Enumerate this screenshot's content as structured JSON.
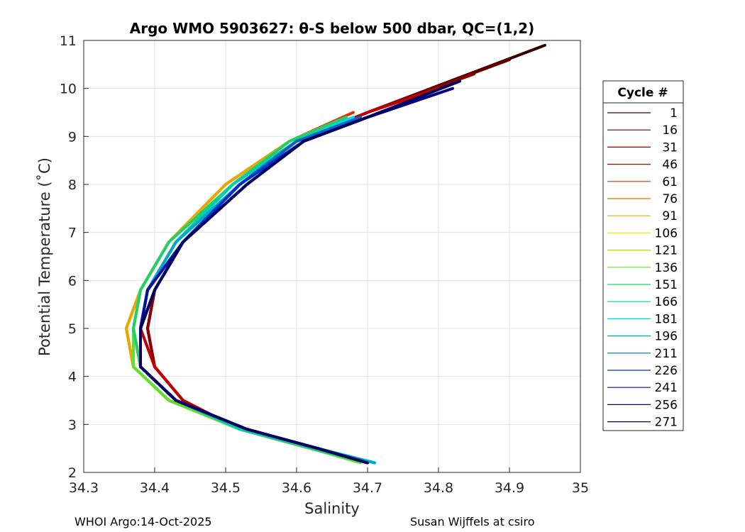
{
  "chart_data": {
    "type": "line",
    "title": "Argo WMO 5903627: θ-S below 500 dbar,  QC=(1,2)",
    "xlabel": "Salinity",
    "ylabel": "Potential Temperature (˚C)",
    "xlim": [
      34.3,
      35.0
    ],
    "ylim": [
      2,
      11
    ],
    "xticks": [
      "34.3",
      "34.4",
      "34.5",
      "34.6",
      "34.7",
      "34.8",
      "34.9",
      "35"
    ],
    "yticks": [
      "2",
      "3",
      "4",
      "5",
      "6",
      "7",
      "8",
      "9",
      "10",
      "11"
    ],
    "grid": true,
    "legend_title": "Cycle #",
    "legend_position": "right",
    "series": [
      {
        "name": "1",
        "color": "#3a0000",
        "x": [
          34.7,
          34.62,
          34.52,
          34.44,
          34.4,
          34.39,
          34.4,
          34.44,
          34.52,
          34.6,
          34.7,
          34.95
        ],
        "y": [
          2.2,
          2.5,
          2.9,
          3.5,
          4.2,
          5.0,
          5.8,
          6.8,
          8.0,
          8.9,
          9.5,
          10.9
        ]
      },
      {
        "name": "16",
        "color": "#620000",
        "x": [
          34.7,
          34.62,
          34.52,
          34.44,
          34.4,
          34.39,
          34.4,
          34.44,
          34.52,
          34.6,
          34.7,
          34.9
        ],
        "y": [
          2.2,
          2.5,
          2.9,
          3.5,
          4.2,
          5.0,
          5.8,
          6.8,
          8.0,
          8.9,
          9.5,
          10.6
        ]
      },
      {
        "name": "31",
        "color": "#8b0000",
        "x": [
          34.7,
          34.62,
          34.52,
          34.44,
          34.4,
          34.39,
          34.4,
          34.44,
          34.52,
          34.6,
          34.7,
          34.85
        ],
        "y": [
          2.2,
          2.5,
          2.9,
          3.5,
          4.2,
          5.0,
          5.8,
          6.8,
          8.0,
          8.9,
          9.5,
          10.3
        ]
      },
      {
        "name": "46",
        "color": "#c00000",
        "x": [
          34.7,
          34.62,
          34.52,
          34.44,
          34.4,
          34.38,
          34.39,
          34.43,
          34.51,
          34.6,
          34.7,
          34.8
        ],
        "y": [
          2.2,
          2.5,
          2.9,
          3.5,
          4.2,
          5.0,
          5.8,
          6.8,
          8.0,
          8.9,
          9.5,
          10.0
        ]
      },
      {
        "name": "61",
        "color": "#e03000",
        "x": [
          34.7,
          34.62,
          34.52,
          34.43,
          34.38,
          34.37,
          34.38,
          34.42,
          34.5,
          34.59,
          34.68
        ],
        "y": [
          2.2,
          2.5,
          2.9,
          3.5,
          4.2,
          5.0,
          5.8,
          6.8,
          8.0,
          8.9,
          9.5
        ]
      },
      {
        "name": "76",
        "color": "#ec6a00",
        "x": [
          34.7,
          34.62,
          34.52,
          34.42,
          34.37,
          34.36,
          34.38,
          34.42,
          34.5,
          34.59,
          34.68
        ],
        "y": [
          2.2,
          2.5,
          2.9,
          3.5,
          4.2,
          5.0,
          5.8,
          6.8,
          8.0,
          8.9,
          9.4
        ]
      },
      {
        "name": "91",
        "color": "#e8a800",
        "x": [
          34.7,
          34.62,
          34.52,
          34.42,
          34.37,
          34.36,
          34.38,
          34.42,
          34.5,
          34.59,
          34.67
        ],
        "y": [
          2.2,
          2.5,
          2.9,
          3.5,
          4.2,
          5.0,
          5.8,
          6.8,
          8.0,
          8.9,
          9.4
        ]
      },
      {
        "name": "106",
        "color": "#f0f000",
        "x": [
          34.7,
          34.62,
          34.52,
          34.42,
          34.37,
          34.37,
          34.38,
          34.42,
          34.51,
          34.59,
          34.67
        ],
        "y": [
          2.2,
          2.5,
          2.9,
          3.5,
          4.2,
          5.0,
          5.8,
          6.8,
          8.0,
          8.9,
          9.4
        ]
      },
      {
        "name": "121",
        "color": "#a8e000",
        "x": [
          34.7,
          34.62,
          34.52,
          34.42,
          34.37,
          34.37,
          34.38,
          34.42,
          34.51,
          34.59,
          34.67
        ],
        "y": [
          2.2,
          2.5,
          2.9,
          3.5,
          4.2,
          5.0,
          5.8,
          6.8,
          8.0,
          8.9,
          9.4
        ]
      },
      {
        "name": "136",
        "color": "#60e030",
        "x": [
          34.69,
          34.62,
          34.52,
          34.42,
          34.37,
          34.37,
          34.38,
          34.42,
          34.51,
          34.59,
          34.67
        ],
        "y": [
          2.2,
          2.5,
          2.9,
          3.5,
          4.2,
          5.0,
          5.8,
          6.8,
          8.0,
          8.9,
          9.4
        ]
      },
      {
        "name": "151",
        "color": "#20d070",
        "x": [
          34.7,
          34.62,
          34.52,
          34.43,
          34.38,
          34.37,
          34.38,
          34.42,
          34.51,
          34.59,
          34.67
        ],
        "y": [
          2.2,
          2.5,
          2.9,
          3.5,
          4.2,
          5.0,
          5.8,
          6.8,
          8.0,
          8.9,
          9.4
        ]
      },
      {
        "name": "166",
        "color": "#00d0b0",
        "x": [
          34.71,
          34.63,
          34.52,
          34.43,
          34.38,
          34.38,
          34.39,
          34.43,
          34.51,
          34.6,
          34.68
        ],
        "y": [
          2.2,
          2.5,
          2.9,
          3.5,
          4.2,
          5.0,
          5.8,
          6.8,
          8.0,
          8.9,
          9.4
        ]
      },
      {
        "name": "181",
        "color": "#00d8e8",
        "x": [
          34.71,
          34.63,
          34.53,
          34.43,
          34.38,
          34.38,
          34.39,
          34.43,
          34.52,
          34.6,
          34.68
        ],
        "y": [
          2.2,
          2.5,
          2.9,
          3.5,
          4.2,
          5.0,
          5.8,
          6.8,
          8.0,
          8.9,
          9.4
        ]
      },
      {
        "name": "196",
        "color": "#00a8c8",
        "x": [
          34.71,
          34.63,
          34.53,
          34.43,
          34.38,
          34.38,
          34.39,
          34.43,
          34.52,
          34.6,
          34.69
        ],
        "y": [
          2.2,
          2.5,
          2.9,
          3.5,
          4.2,
          5.0,
          5.8,
          6.8,
          8.0,
          8.9,
          9.4
        ]
      },
      {
        "name": "211",
        "color": "#0068c0",
        "x": [
          34.7,
          34.63,
          34.53,
          34.43,
          34.38,
          34.38,
          34.39,
          34.44,
          34.52,
          34.6,
          34.69
        ],
        "y": [
          2.2,
          2.5,
          2.9,
          3.5,
          4.2,
          5.0,
          5.8,
          6.8,
          8.0,
          8.9,
          9.4
        ]
      },
      {
        "name": "226",
        "color": "#0030d0",
        "x": [
          34.7,
          34.63,
          34.53,
          34.43,
          34.38,
          34.38,
          34.39,
          34.44,
          34.52,
          34.61,
          34.7
        ],
        "y": [
          2.2,
          2.5,
          2.9,
          3.5,
          4.2,
          5.0,
          5.8,
          6.8,
          8.0,
          8.9,
          9.4
        ]
      },
      {
        "name": "241",
        "color": "#0010a0",
        "x": [
          34.7,
          34.63,
          34.53,
          34.43,
          34.38,
          34.38,
          34.39,
          34.44,
          34.53,
          34.61,
          34.7,
          34.8
        ],
        "y": [
          2.2,
          2.5,
          2.9,
          3.5,
          4.2,
          5.0,
          5.8,
          6.8,
          8.0,
          8.9,
          9.4,
          9.9
        ]
      },
      {
        "name": "256",
        "color": "#000880",
        "x": [
          34.7,
          34.63,
          34.53,
          34.43,
          34.38,
          34.38,
          34.4,
          34.44,
          34.53,
          34.61,
          34.7,
          34.82
        ],
        "y": [
          2.2,
          2.5,
          2.9,
          3.5,
          4.2,
          5.0,
          5.8,
          6.8,
          8.0,
          8.9,
          9.4,
          10.0
        ]
      },
      {
        "name": "271",
        "color": "#000060",
        "x": [
          34.7,
          34.63,
          34.53,
          34.43,
          34.38,
          34.38,
          34.4,
          34.44,
          34.53,
          34.61,
          34.7,
          34.83
        ],
        "y": [
          2.2,
          2.5,
          2.9,
          3.5,
          4.2,
          5.0,
          5.8,
          6.8,
          8.0,
          8.9,
          9.4,
          10.15
        ]
      }
    ]
  },
  "footer": {
    "left": "WHOI Argo:14-Oct-2025",
    "right": "Susan Wijffels at csiro"
  }
}
